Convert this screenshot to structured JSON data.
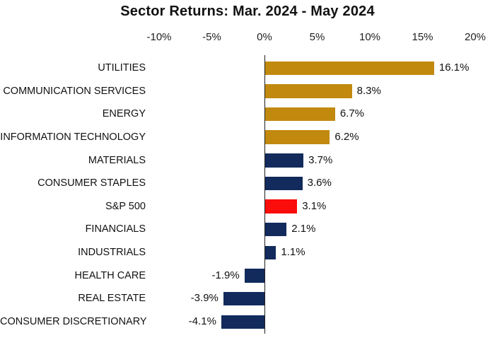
{
  "chart_data": {
    "type": "bar",
    "orientation": "horizontal",
    "title": "Sector Returns: Mar. 2024 - May 2024",
    "categories": [
      "UTILITIES",
      "COMMUNICATION SERVICES",
      "ENERGY",
      "INFORMATION TECHNOLOGY",
      "MATERIALS",
      "CONSUMER STAPLES",
      "S&P 500",
      "FINANCIALS",
      "INDUSTRIALS",
      "HEALTH CARE",
      "REAL ESTATE",
      "CONSUMER DISCRETIONARY"
    ],
    "values": [
      16.1,
      8.3,
      6.7,
      6.2,
      3.7,
      3.6,
      3.1,
      2.1,
      1.1,
      -1.9,
      -3.9,
      -4.1
    ],
    "value_labels": [
      "16.1%",
      "8.3%",
      "6.7%",
      "6.2%",
      "3.7%",
      "3.6%",
      "3.1%",
      "2.1%",
      "1.1%",
      "-1.9%",
      "-3.9%",
      "-4.1%"
    ],
    "bar_colors": [
      "gold",
      "gold",
      "gold",
      "gold",
      "navy",
      "navy",
      "red",
      "navy",
      "navy",
      "navy",
      "navy",
      "navy"
    ],
    "color_map": {
      "gold": "#C2890F",
      "navy": "#122B5C",
      "red": "#FA0D0B"
    },
    "x_ticks": [
      {
        "label": "-10%",
        "value": -10
      },
      {
        "label": "-5%",
        "value": -5
      },
      {
        "label": "0%",
        "value": 0
      },
      {
        "label": "5%",
        "value": 5
      },
      {
        "label": "10%",
        "value": 10
      },
      {
        "label": "15%",
        "value": 15
      },
      {
        "label": "20%",
        "value": 20
      }
    ],
    "xlim": [
      -10.9,
      21.9
    ],
    "xlabel": "",
    "ylabel": "",
    "grid": false,
    "legend": "none",
    "axis_line_color": "#1f1f1f",
    "text_color": "#111111",
    "background_color": "#ffffff"
  }
}
